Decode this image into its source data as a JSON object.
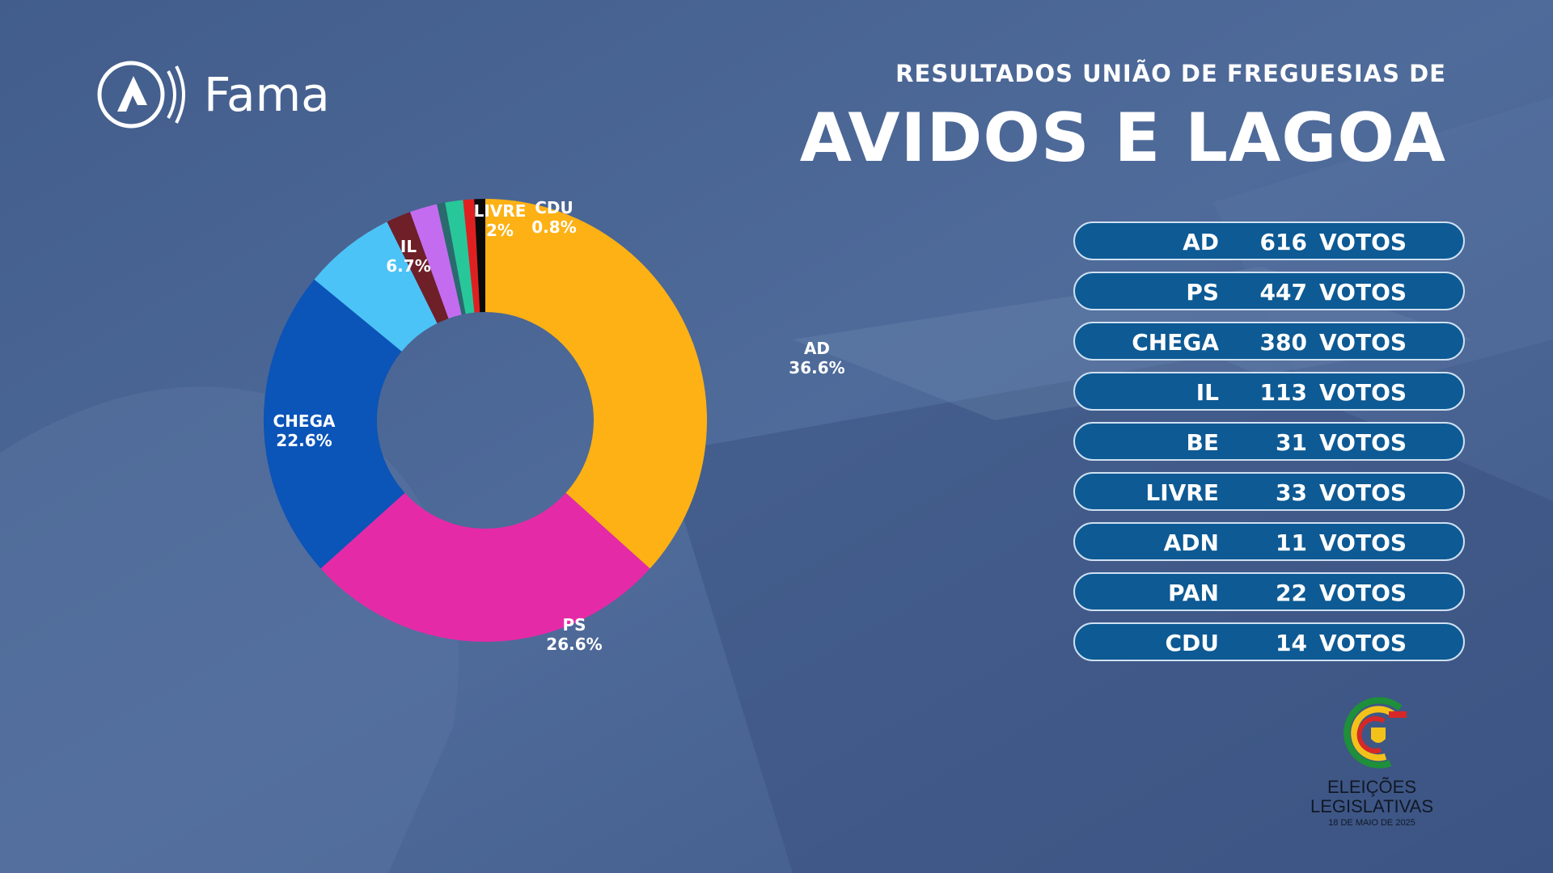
{
  "brand": {
    "name": "Fama",
    "icon": "fama-logo-icon"
  },
  "header": {
    "subtitle": "RESULTADOS UNIÃO DE FREGUESIAS DE",
    "title": "AVIDOS E LAGOA"
  },
  "colors": {
    "background": "#4a6694",
    "row_fill": "#0d5a94",
    "row_border": "#cfe0f2"
  },
  "chart_data": {
    "type": "donut",
    "slices": [
      {
        "label": "AD",
        "value": 36.6,
        "display": "36.6%",
        "color": "#fdb114"
      },
      {
        "label": "PS",
        "value": 26.6,
        "display": "26.6%",
        "color": "#e52aa8"
      },
      {
        "label": "CHEGA",
        "value": 22.6,
        "display": "22.6%",
        "color": "#0b54b8"
      },
      {
        "label": "IL",
        "value": 6.7,
        "display": "6.7%",
        "color": "#4cc3f7"
      },
      {
        "label": "",
        "value": 1.8,
        "display": "",
        "color": "#6e1f28"
      },
      {
        "label": "LIVRE",
        "value": 2.0,
        "display": "2%",
        "color": "#c46cf0"
      },
      {
        "label": "",
        "value": 0.6,
        "display": "",
        "color": "#2a6a6e"
      },
      {
        "label": "",
        "value": 1.3,
        "display": "",
        "color": "#27c79a"
      },
      {
        "label": "",
        "value": 0.8,
        "display": "",
        "color": "#e02020"
      },
      {
        "label": "CDU",
        "value": 0.8,
        "display": "0.8%",
        "color": "#0a0a0a"
      }
    ]
  },
  "results": [
    {
      "party": "AD",
      "votes": "616",
      "unit": "VOTOS"
    },
    {
      "party": "PS",
      "votes": "447",
      "unit": "VOTOS"
    },
    {
      "party": "CHEGA",
      "votes": "380",
      "unit": "VOTOS"
    },
    {
      "party": "IL",
      "votes": "113",
      "unit": "VOTOS"
    },
    {
      "party": "BE",
      "votes": "31",
      "unit": "VOTOS"
    },
    {
      "party": "LIVRE",
      "votes": "33",
      "unit": "VOTOS"
    },
    {
      "party": "ADN",
      "votes": "11",
      "unit": "VOTOS"
    },
    {
      "party": "PAN",
      "votes": "22",
      "unit": "VOTOS"
    },
    {
      "party": "CDU",
      "votes": "14",
      "unit": "VOTOS"
    }
  ],
  "election": {
    "icon": "eleicoes-legislativas-emblem",
    "line1": "ELEIÇÕES",
    "line2": "LEGISLATIVAS",
    "date": "18 DE MAIO DE 2025"
  }
}
